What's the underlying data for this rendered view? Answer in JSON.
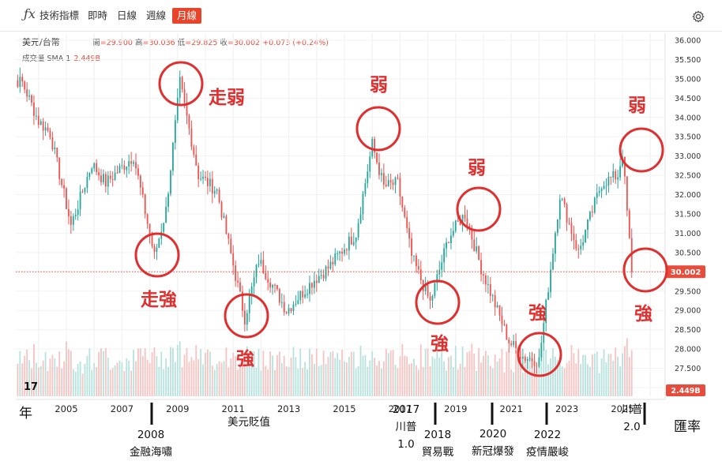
{
  "toolbar": {
    "fx_icon": "ƒx",
    "items": [
      "技術指標",
      "即時",
      "日線",
      "週線",
      "月線"
    ],
    "active": "月線",
    "settings_icon": "gear-icon"
  },
  "legend": {
    "pair": "美元/台幣",
    "open_label": "開",
    "open": "=29.900",
    "high_label": "高",
    "high": "=30.036",
    "low_label": "低",
    "low": "=29.825",
    "close_label": "收",
    "close": "=30.002",
    "change": "+0.073 (+0.24%)",
    "volume_label": "成交量 SMA 1",
    "volume_value": "2.449B"
  },
  "price_tag": "30.002",
  "volume_tag": "2.449B",
  "corner_left": "年",
  "corner_right": "匯率",
  "colors": {
    "up": "#26a69a",
    "down": "#ef5350",
    "anno": "#e02f2f",
    "price_line": "#e84c3d"
  },
  "annotations": [
    {
      "label": "走弱"
    },
    {
      "label": "走強"
    },
    {
      "label": "強"
    },
    {
      "label": "弱"
    },
    {
      "label": "強"
    },
    {
      "label": "弱"
    },
    {
      "label": "強"
    },
    {
      "label": "弱"
    },
    {
      "label": "強"
    }
  ],
  "events": [
    {
      "year": "2008",
      "text": "金融海嘯"
    },
    {
      "year": "",
      "text": "美元貶值"
    },
    {
      "year": "2017",
      "text": "川普",
      "suffix": "1.0"
    },
    {
      "year": "2018",
      "text": "貿易戰"
    },
    {
      "year": "2020",
      "text": "新冠爆發"
    },
    {
      "year": "2022",
      "text": "疫情嚴峻"
    },
    {
      "year": "",
      "text": "川普",
      "suffix": "2.0"
    }
  ],
  "chart_data": {
    "type": "candlestick",
    "title": "美元/台幣",
    "interval": "月線",
    "x_ticks": [
      "2005",
      "2007",
      "2009",
      "2011",
      "2013",
      "2015",
      "2017",
      "2019",
      "2021",
      "2023",
      "2025"
    ],
    "y_ticks": [
      "36.000",
      "35.500",
      "35.000",
      "34.500",
      "34.000",
      "33.500",
      "33.000",
      "32.500",
      "32.000",
      "31.500",
      "31.000",
      "30.500",
      "30.000",
      "29.500",
      "29.000",
      "28.500",
      "28.000",
      "27.500",
      "27.000"
    ],
    "ylim": [
      26.8,
      36.0
    ],
    "last_close": 30.002,
    "volume_last": "2.449B",
    "approx_monthly_closes": [
      {
        "date": "2003-06",
        "close": 34.9
      },
      {
        "date": "2004-01",
        "close": 33.9
      },
      {
        "date": "2004-06",
        "close": 33.6
      },
      {
        "date": "2005-03",
        "close": 31.2
      },
      {
        "date": "2005-12",
        "close": 32.8
      },
      {
        "date": "2006-06",
        "close": 32.3
      },
      {
        "date": "2007-06",
        "close": 33.0
      },
      {
        "date": "2008-03",
        "close": 30.4
      },
      {
        "date": "2008-08",
        "close": 31.6
      },
      {
        "date": "2009-02",
        "close": 34.9
      },
      {
        "date": "2009-10",
        "close": 32.5
      },
      {
        "date": "2010-06",
        "close": 32.1
      },
      {
        "date": "2011-06",
        "close": 28.8
      },
      {
        "date": "2011-12",
        "close": 30.3
      },
      {
        "date": "2012-12",
        "close": 29.0
      },
      {
        "date": "2013-12",
        "close": 29.8
      },
      {
        "date": "2014-06",
        "close": 30.1
      },
      {
        "date": "2015-06",
        "close": 31.0
      },
      {
        "date": "2016-01",
        "close": 33.3
      },
      {
        "date": "2016-06",
        "close": 32.2
      },
      {
        "date": "2016-12",
        "close": 32.3
      },
      {
        "date": "2017-06",
        "close": 30.4
      },
      {
        "date": "2018-02",
        "close": 29.2
      },
      {
        "date": "2018-10",
        "close": 30.9
      },
      {
        "date": "2019-05",
        "close": 31.5
      },
      {
        "date": "2019-12",
        "close": 30.1
      },
      {
        "date": "2020-12",
        "close": 28.2
      },
      {
        "date": "2021-06",
        "close": 27.8
      },
      {
        "date": "2022-01",
        "close": 27.7
      },
      {
        "date": "2022-10",
        "close": 32.0
      },
      {
        "date": "2023-06",
        "close": 30.5
      },
      {
        "date": "2024-04",
        "close": 32.3
      },
      {
        "date": "2024-11",
        "close": 32.5
      },
      {
        "date": "2025-01",
        "close": 33.1
      },
      {
        "date": "2025-05",
        "close": 30.0
      }
    ]
  }
}
